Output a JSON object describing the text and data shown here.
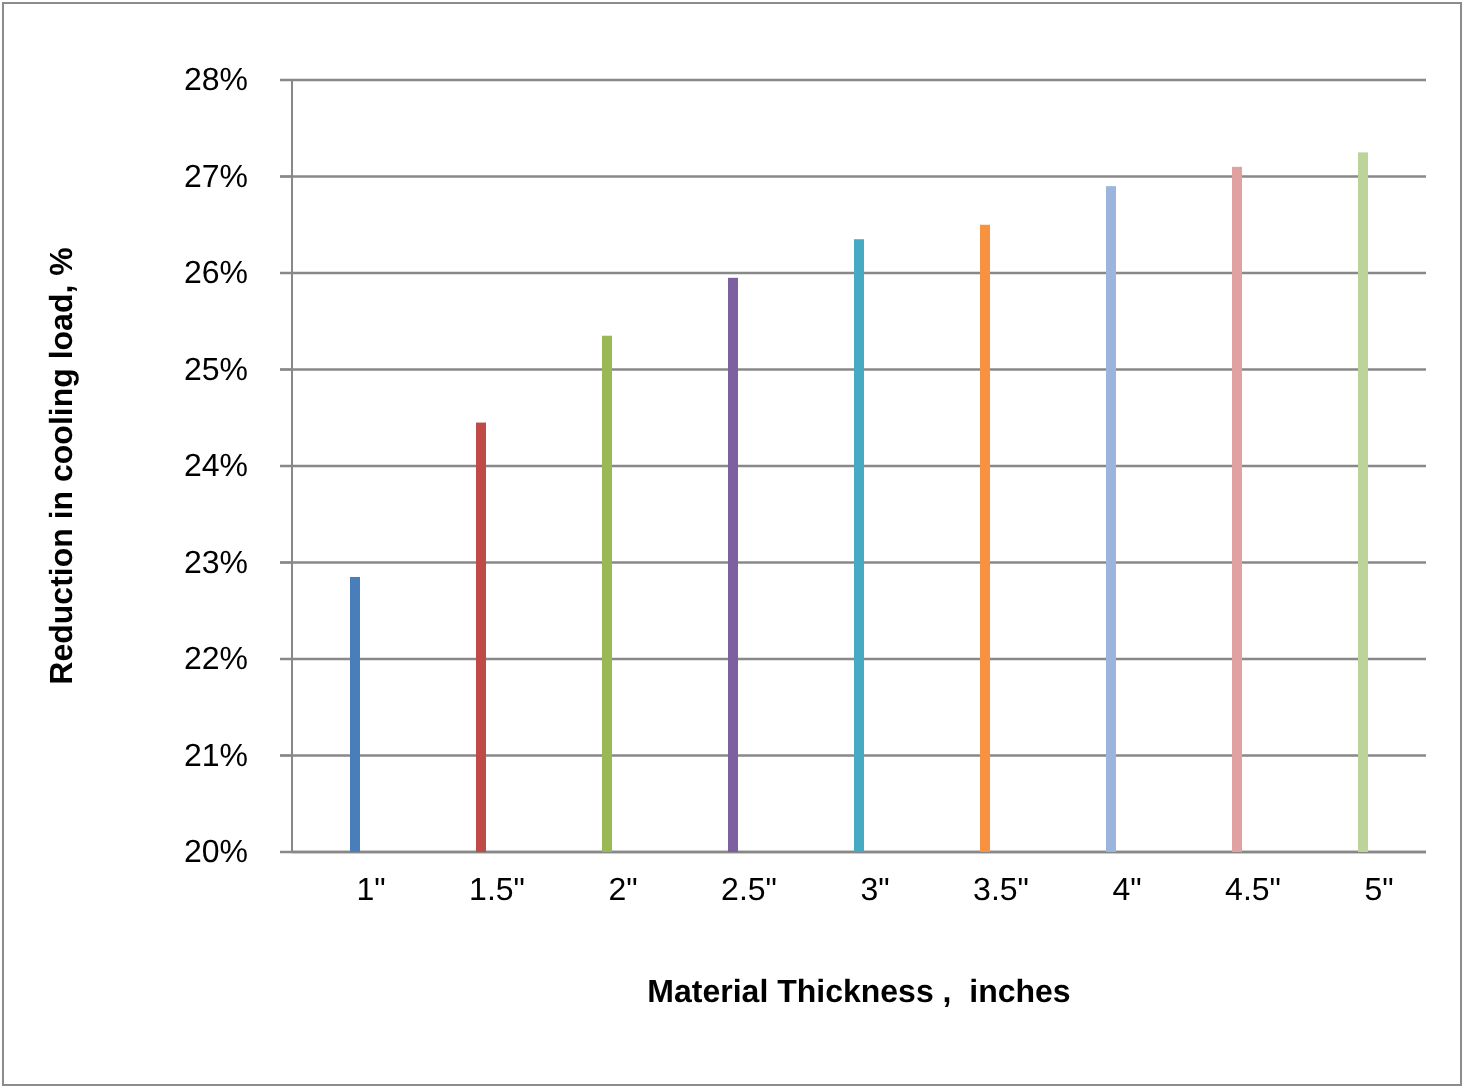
{
  "chart_data": {
    "type": "bar",
    "xlabel": "Material Thickness ,  inches",
    "ylabel": "Reduction in cooling load, %",
    "categories": [
      "1\"",
      "1.5\"",
      "2\"",
      "2.5\"",
      "3\"",
      "3.5\"",
      "4\"",
      "4.5\"",
      "5\""
    ],
    "values": [
      22.85,
      24.45,
      25.35,
      25.95,
      26.35,
      26.5,
      26.9,
      27.1,
      27.25
    ],
    "colors": [
      "#4a7ebb",
      "#be4b48",
      "#98b954",
      "#7d60a0",
      "#46aac5",
      "#f69240",
      "#9cb5dc",
      "#e0a1a0",
      "#bcd39a"
    ],
    "ylim": [
      20,
      28
    ],
    "yticks": [
      {
        "value": 20,
        "label": "20%"
      },
      {
        "value": 21,
        "label": "21%"
      },
      {
        "value": 22,
        "label": "22%"
      },
      {
        "value": 23,
        "label": "23%"
      },
      {
        "value": 24,
        "label": "24%"
      },
      {
        "value": 25,
        "label": "25%"
      },
      {
        "value": 26,
        "label": "26%"
      },
      {
        "value": 27,
        "label": "27%"
      },
      {
        "value": 28,
        "label": "28%"
      }
    ],
    "grid": "y"
  }
}
